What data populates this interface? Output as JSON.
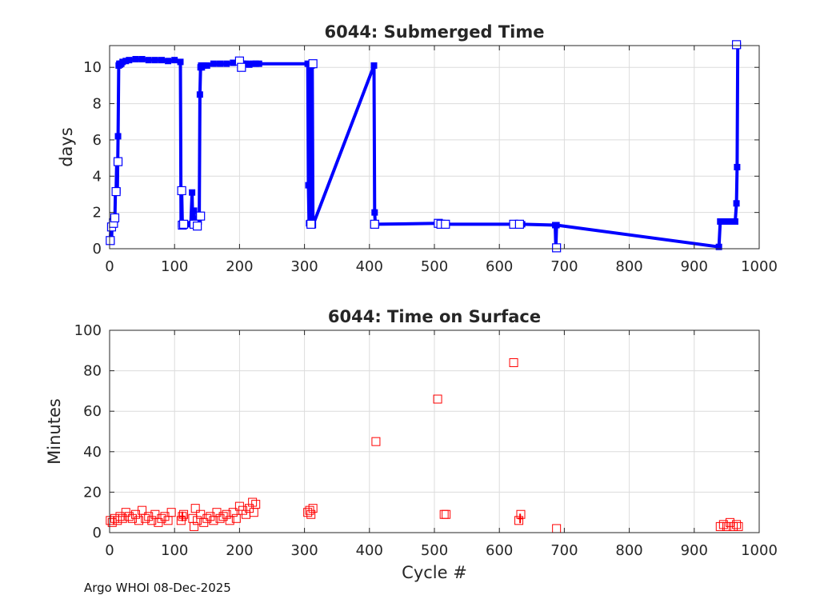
{
  "footer": {
    "credit": "Argo WHOI 08-Dec-2025"
  },
  "colors": {
    "submerged": "#0000ff",
    "surface": "#ff0000",
    "grid": "#dcdcdc",
    "axis": "#262626"
  },
  "chart_data": [
    {
      "type": "line",
      "title": "6044: Submerged Time",
      "xlabel": "",
      "ylabel": "days",
      "xlim": [
        0,
        1000
      ],
      "ylim": [
        0,
        11.2
      ],
      "xticks": [
        "0",
        "100",
        "200",
        "300",
        "400",
        "500",
        "600",
        "700",
        "800",
        "900",
        "1000"
      ],
      "yticks": [
        "0",
        "2",
        "4",
        "6",
        "8",
        "10"
      ],
      "grid": true,
      "series": [
        {
          "name": "submerged time",
          "x": [
            1,
            2,
            3,
            4,
            5,
            6,
            7,
            8,
            9,
            10,
            11,
            12,
            13,
            14,
            15,
            16,
            17,
            18,
            20,
            25,
            30,
            40,
            50,
            60,
            70,
            80,
            90,
            100,
            109,
            110,
            111,
            112,
            113,
            114,
            115,
            125,
            127,
            128,
            129,
            130,
            131,
            132,
            133,
            134,
            135,
            136,
            137,
            138,
            139,
            140,
            141,
            142,
            145,
            150,
            160,
            170,
            180,
            190,
            200,
            205,
            210,
            215,
            220,
            225,
            230,
            305,
            306,
            307,
            308,
            309,
            310,
            311,
            312,
            313,
            407,
            408,
            409,
            410,
            505,
            506,
            510,
            515,
            518,
            622,
            630,
            635,
            686,
            687,
            688,
            938,
            940,
            945,
            950,
            955,
            960,
            963,
            965,
            966,
            967
          ],
          "y": [
            0.5,
            1.2,
            0.4,
            1.5,
            1.3,
            1.6,
            1.7,
            1.4,
            3.2,
            3.1,
            4.8,
            3.2,
            6.2,
            10.1,
            10.2,
            10.15,
            10.2,
            10.2,
            10.3,
            10.35,
            10.4,
            10.45,
            10.45,
            10.4,
            10.4,
            10.4,
            10.35,
            10.4,
            10.3,
            1.35,
            3.2,
            1.4,
            1.3,
            1.35,
            1.4,
            1.35,
            3.1,
            1.4,
            1.3,
            2.1,
            1.35,
            1.3,
            1.2,
            1.4,
            1.3,
            1.6,
            1.5,
            1.8,
            8.5,
            10.0,
            10.1,
            10.0,
            10.1,
            10.1,
            10.2,
            10.2,
            10.2,
            10.25,
            10.3,
            10.2,
            10.2,
            10.15,
            10.2,
            10.2,
            10.2,
            10.2,
            3.5,
            1.4,
            10.1,
            9.5,
            1.35,
            10.1,
            10.2,
            1.3,
            10.1,
            2.0,
            1.4,
            1.35,
            1.4,
            1.35,
            1.35,
            1.4,
            1.35,
            1.35,
            1.3,
            1.35,
            1.3,
            0.05,
            1.3,
            0.1,
            1.5,
            1.5,
            1.5,
            1.5,
            1.5,
            1.5,
            2.5,
            4.5,
            11.2
          ]
        }
      ],
      "markers": {
        "x": [
          1,
          3,
          6,
          8,
          10,
          13,
          111,
          112,
          114,
          130,
          135,
          140,
          200,
          203,
          310,
          313,
          408,
          506,
          510,
          517,
          622,
          631,
          688,
          965
        ],
        "y": [
          0.45,
          1.2,
          1.4,
          1.7,
          3.15,
          4.8,
          3.2,
          1.3,
          1.35,
          1.35,
          1.25,
          1.8,
          10.35,
          10.0,
          1.35,
          10.2,
          1.35,
          1.4,
          1.35,
          1.35,
          1.35,
          1.35,
          0.05,
          11.25
        ]
      }
    },
    {
      "type": "scatter",
      "title": "6044: Time on Surface",
      "xlabel": "Cycle #",
      "ylabel": "Minutes",
      "xlim": [
        0,
        1000
      ],
      "ylim": [
        0,
        100
      ],
      "xticks": [
        "0",
        "100",
        "200",
        "300",
        "400",
        "500",
        "600",
        "700",
        "800",
        "900",
        "1000"
      ],
      "yticks": [
        "0",
        "20",
        "40",
        "60",
        "80",
        "100"
      ],
      "grid": true,
      "series": [
        {
          "name": "surface time",
          "x": [
            1,
            4,
            8,
            12,
            16,
            20,
            25,
            30,
            35,
            40,
            45,
            50,
            55,
            60,
            65,
            70,
            75,
            80,
            85,
            90,
            95,
            110,
            112,
            114,
            128,
            130,
            132,
            135,
            140,
            145,
            150,
            155,
            160,
            165,
            170,
            175,
            180,
            185,
            190,
            195,
            200,
            205,
            210,
            215,
            220,
            222,
            225,
            305,
            308,
            310,
            313,
            410,
            505,
            515,
            518,
            622,
            630,
            633,
            688,
            940,
            945,
            950,
            955,
            960,
            965,
            968
          ],
          "y": [
            6,
            5,
            7,
            6,
            8,
            7,
            10,
            8,
            7,
            9,
            6,
            11,
            7,
            8,
            6,
            9,
            5,
            7,
            8,
            6,
            10,
            6,
            8,
            9,
            7,
            3,
            12,
            6,
            9,
            5,
            7,
            8,
            6,
            10,
            7,
            8,
            9,
            6,
            10,
            7,
            13,
            11,
            9,
            12,
            15,
            10,
            14,
            10,
            11,
            9,
            12,
            45,
            66,
            9,
            9,
            84,
            6,
            9,
            2,
            3,
            4,
            3,
            5,
            3,
            4,
            3
          ],
          "error_x": [
            112,
            632
          ],
          "error_y": [
            8,
            7
          ]
        }
      ]
    }
  ]
}
